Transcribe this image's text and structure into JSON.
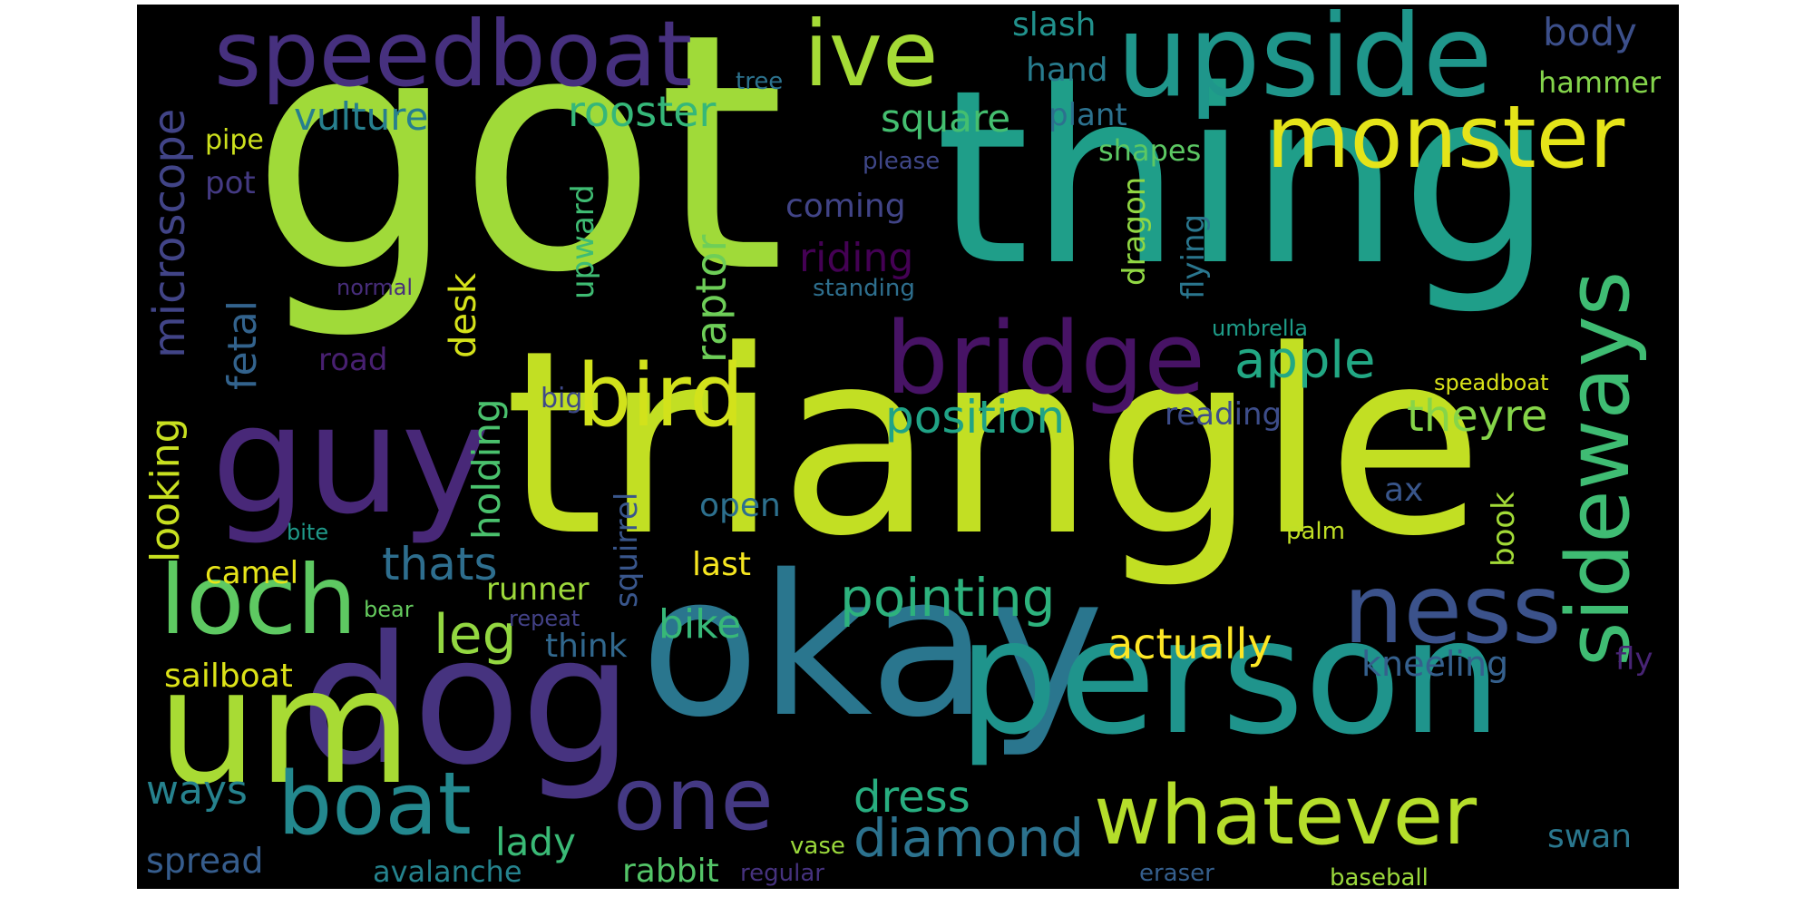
{
  "words": {
    "got": {
      "text": "got",
      "color": "#a0da39"
    },
    "thing": {
      "text": "thing",
      "color": "#1f9e89"
    },
    "triangle": {
      "text": "triangle",
      "color": "#c2df23"
    },
    "okay": {
      "text": "okay",
      "color": "#2a768e"
    },
    "person": {
      "text": "person",
      "color": "#1f948c"
    },
    "dog": {
      "text": "dog",
      "color": "#46337f"
    },
    "um": {
      "text": "um",
      "color": "#a8db34"
    },
    "guy": {
      "text": "guy",
      "color": "#482878"
    },
    "upside": {
      "text": "upside",
      "color": "#1f968b"
    },
    "speedboat": {
      "text": "speedboat",
      "color": "#46307e"
    },
    "ive": {
      "text": "ive",
      "color": "#a5db36"
    },
    "monster": {
      "text": "monster",
      "color": "#e5e419"
    },
    "bird": {
      "text": "bird",
      "color": "#d2e21b"
    },
    "bridge": {
      "text": "bridge",
      "color": "#471365"
    },
    "loch": {
      "text": "loch",
      "color": "#5ec962"
    },
    "ness": {
      "text": "ness",
      "color": "#3b528b"
    },
    "sideways": {
      "text": "sideways",
      "color": "#3fbc73"
    },
    "boat": {
      "text": "boat",
      "color": "#23888e"
    },
    "one": {
      "text": "one",
      "color": "#443983"
    },
    "whatever": {
      "text": "whatever",
      "color": "#b5de2b"
    },
    "diamond": {
      "text": "diamond",
      "color": "#2c728e"
    },
    "pointing": {
      "text": "pointing",
      "color": "#2db27d"
    },
    "actually": {
      "text": "actually",
      "color": "#fde725"
    },
    "apple": {
      "text": "apple",
      "color": "#22a884"
    },
    "position": {
      "text": "position",
      "color": "#20a386"
    },
    "theyre": {
      "text": "theyre",
      "color": "#86d549"
    },
    "leg": {
      "text": "leg",
      "color": "#93d741"
    },
    "thats": {
      "text": "thats",
      "color": "#2e6e8e"
    },
    "dress": {
      "text": "dress",
      "color": "#28ae80"
    },
    "rooster": {
      "text": "rooster",
      "color": "#35b779"
    },
    "vulture": {
      "text": "vulture",
      "color": "#277f8e"
    },
    "square": {
      "text": "square",
      "color": "#44bf70"
    },
    "riding": {
      "text": "riding",
      "color": "#440154"
    },
    "raptor": {
      "text": "raptor",
      "color": "#6ece58"
    },
    "microscope": {
      "text": "microscope",
      "color": "#414487"
    },
    "fetal": {
      "text": "fetal",
      "color": "#33638d"
    },
    "looking": {
      "text": "looking",
      "color": "#c8e020"
    },
    "holding": {
      "text": "holding",
      "color": "#4ac16d"
    },
    "desk": {
      "text": "desk",
      "color": "#d5e21a"
    },
    "upward": {
      "text": "upward",
      "color": "#3fbc73"
    },
    "squirrel": {
      "text": "squirrel",
      "color": "#39568c"
    },
    "coming": {
      "text": "coming",
      "color": "#414487"
    },
    "bike": {
      "text": "bike",
      "color": "#37b878"
    },
    "open": {
      "text": "open",
      "color": "#2d708e"
    },
    "last": {
      "text": "last",
      "color": "#f6e620"
    },
    "think": {
      "text": "think",
      "color": "#31688e"
    },
    "runner": {
      "text": "runner",
      "color": "#9dd93b"
    },
    "camel": {
      "text": "camel",
      "color": "#e7e419"
    },
    "sailboat": {
      "text": "sailboat",
      "color": "#dde318"
    },
    "ways": {
      "text": "ways",
      "color": "#26828e"
    },
    "spread": {
      "text": "spread",
      "color": "#365d8d"
    },
    "lady": {
      "text": "lady",
      "color": "#3aba76"
    },
    "avalanche": {
      "text": "avalanche",
      "color": "#25838e"
    },
    "rabbit": {
      "text": "rabbit",
      "color": "#54c568"
    },
    "regular": {
      "text": "regular",
      "color": "#46327e"
    },
    "vase": {
      "text": "vase",
      "color": "#9bd93c"
    },
    "eraser": {
      "text": "eraser",
      "color": "#355f8d"
    },
    "baseball": {
      "text": "baseball",
      "color": "#9bd93c"
    },
    "swan": {
      "text": "swan",
      "color": "#2a778e"
    },
    "kneeling": {
      "text": "kneeling",
      "color": "#35608d"
    },
    "fly": {
      "text": "fly",
      "color": "#482475"
    },
    "book": {
      "text": "book",
      "color": "#a2da37"
    },
    "ax": {
      "text": "ax",
      "color": "#39568c"
    },
    "palm": {
      "text": "palm",
      "color": "#c0df25"
    },
    "reading": {
      "text": "reading",
      "color": "#3d4d8a"
    },
    "speadboat": {
      "text": "speadboat",
      "color": "#d8e219"
    },
    "umbrella": {
      "text": "umbrella",
      "color": "#1e9d89"
    },
    "flying": {
      "text": "flying",
      "color": "#2a768e"
    },
    "dragon": {
      "text": "dragon",
      "color": "#90d743"
    },
    "shapes": {
      "text": "shapes",
      "color": "#5cc863"
    },
    "standing": {
      "text": "standing",
      "color": "#2e6f8e"
    },
    "please": {
      "text": "please",
      "color": "#3f4788"
    },
    "plant": {
      "text": "plant",
      "color": "#2c718e"
    },
    "hand": {
      "text": "hand",
      "color": "#287c8e"
    },
    "slash": {
      "text": "slash",
      "color": "#21918c"
    },
    "tree": {
      "text": "tree",
      "color": "#2c728e"
    },
    "body": {
      "text": "body",
      "color": "#3c4f8a"
    },
    "hammer": {
      "text": "hammer",
      "color": "#84d44b"
    },
    "pipe": {
      "text": "pipe",
      "color": "#cde11d"
    },
    "pot": {
      "text": "pot",
      "color": "#443a83"
    },
    "normal": {
      "text": "normal",
      "color": "#472d7b"
    },
    "road": {
      "text": "road",
      "color": "#482071"
    },
    "big": {
      "text": "big",
      "color": "#3e4989"
    },
    "bite": {
      "text": "bite",
      "color": "#1f9a8a"
    },
    "bear": {
      "text": "bear",
      "color": "#65cb5e"
    },
    "repeat": {
      "text": "repeat",
      "color": "#424186"
    }
  }
}
